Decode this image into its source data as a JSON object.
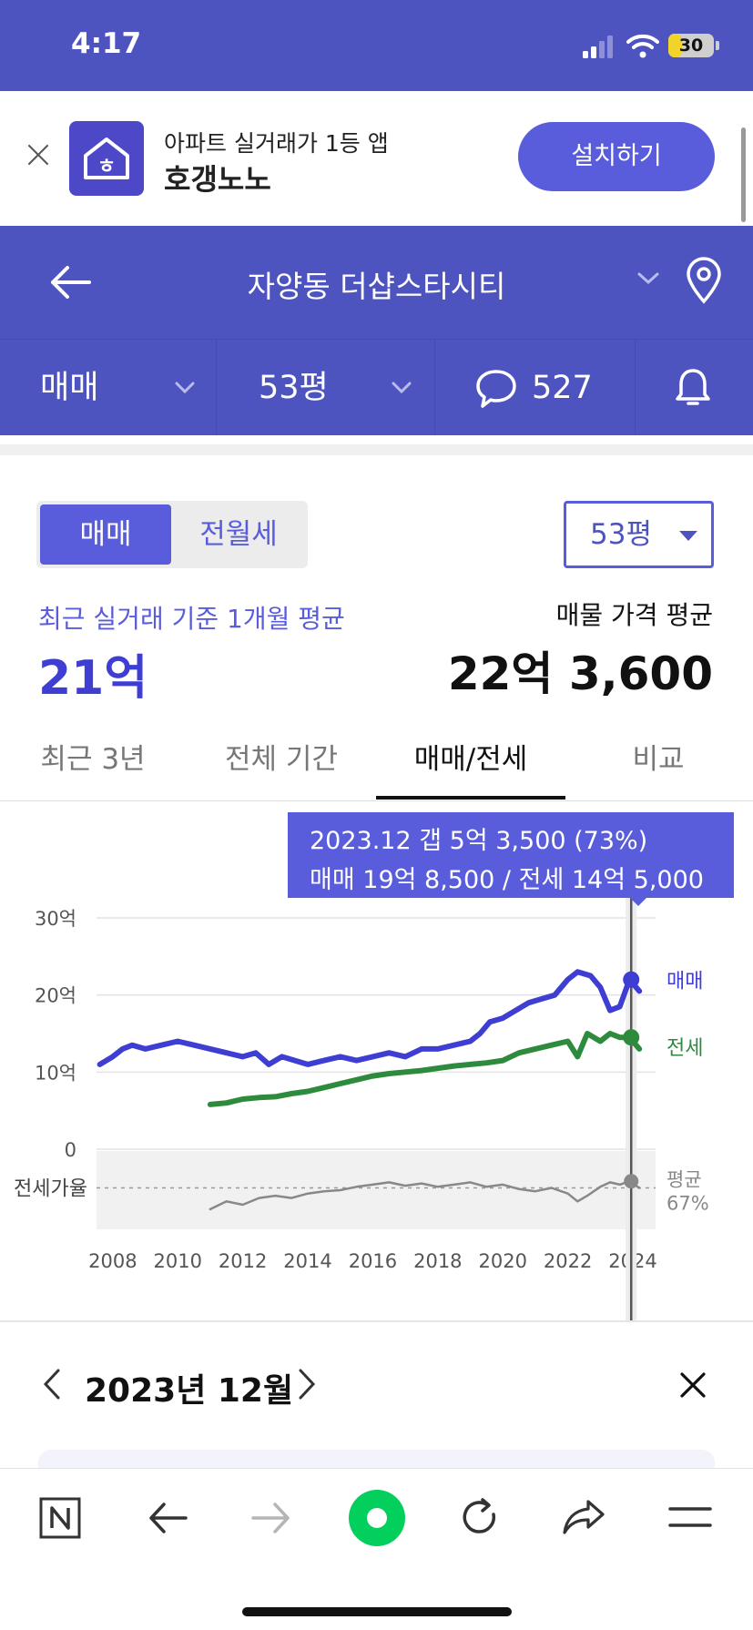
{
  "status_bar": {
    "time": "4:17",
    "battery": "30",
    "battery_level": 0.3
  },
  "banner": {
    "subtitle": "아파트 실거래가 1등 앱",
    "app_name": "호갱노노",
    "install_label": "설치하기",
    "logo_glyph": "ㅎ"
  },
  "header": {
    "title": "자양동 더샵스타시티"
  },
  "subheader": {
    "trade_type": "매매",
    "size": "53평",
    "comment_count": "527"
  },
  "section": {
    "seg_sale": "매매",
    "seg_rent": "전월세",
    "size_select": "53평",
    "recent_label": "최근 실거래 기준 1개월 평균",
    "recent_value": "21억",
    "listing_label": "매물 가격 평균",
    "listing_value": "22억 3,600"
  },
  "tabs": [
    "최근 3년",
    "전체 기간",
    "매매/전세",
    "비교"
  ],
  "active_tab": "매매/전세",
  "tooltip": {
    "line1": "2023.12  갭 5억 3,500 (73%)",
    "line2": "매매 19억 8,500 / 전세 14억 5,000"
  },
  "chart_data": {
    "type": "line",
    "y_ticks": [
      "30억",
      "20억",
      "10억",
      "0"
    ],
    "ylim": [
      0,
      30
    ],
    "x_ticks": [
      "2008",
      "2010",
      "2012",
      "2014",
      "2016",
      "2018",
      "2020",
      "2022",
      "2024"
    ],
    "ratio_label": "전세가율",
    "ratio_avg_label_1": "평균",
    "ratio_avg_label_2": "67%",
    "series": [
      {
        "name": "매매",
        "color": "#3f3ed3",
        "x": [
          2007.6,
          2008.0,
          2008.3,
          2008.6,
          2009.0,
          2009.5,
          2010.0,
          2010.5,
          2011.0,
          2011.5,
          2012.0,
          2012.4,
          2012.8,
          2013.2,
          2013.6,
          2014.0,
          2014.5,
          2015.0,
          2015.5,
          2016.0,
          2016.5,
          2017.0,
          2017.5,
          2018.0,
          2018.5,
          2019.0,
          2019.3,
          2019.6,
          2020.0,
          2020.4,
          2020.8,
          2021.2,
          2021.6,
          2022.0,
          2022.3,
          2022.7,
          2023.0,
          2023.3,
          2023.6,
          2023.9,
          2024.2
        ],
        "values": [
          11,
          12,
          13,
          13.5,
          13,
          13.5,
          14,
          13.5,
          13,
          12.5,
          12,
          12.5,
          11,
          12,
          11.5,
          11,
          11.5,
          12,
          11.5,
          12,
          12.5,
          12,
          13,
          13,
          13.5,
          14,
          15,
          16.5,
          17,
          18,
          19,
          19.5,
          20,
          22,
          23,
          22.5,
          21,
          18,
          18.5,
          22,
          20.5
        ]
      },
      {
        "name": "전세",
        "color": "#2e8b3e",
        "x": [
          2011.0,
          2011.5,
          2012.0,
          2012.5,
          2013.0,
          2013.5,
          2014.0,
          2014.5,
          2015.0,
          2015.5,
          2016.0,
          2016.5,
          2017.0,
          2017.5,
          2018.0,
          2018.5,
          2019.0,
          2019.5,
          2020.0,
          2020.5,
          2021.0,
          2021.5,
          2022.0,
          2022.3,
          2022.6,
          2023.0,
          2023.3,
          2023.6,
          2023.9,
          2024.2
        ],
        "values": [
          5.8,
          6,
          6.5,
          6.7,
          6.8,
          7.2,
          7.5,
          8,
          8.5,
          9,
          9.5,
          9.8,
          10,
          10.2,
          10.5,
          10.8,
          11,
          11.2,
          11.5,
          12.5,
          13,
          13.5,
          14,
          12,
          15,
          14,
          15,
          14.5,
          14.5,
          13
        ]
      },
      {
        "name": "전세가율",
        "color": "#888888",
        "x": [
          2011.0,
          2011.5,
          2012.0,
          2012.5,
          2013.0,
          2013.5,
          2014.0,
          2014.5,
          2015.0,
          2015.5,
          2016.0,
          2016.5,
          2017.0,
          2017.5,
          2018.0,
          2018.5,
          2019.0,
          2019.5,
          2020.0,
          2020.5,
          2021.0,
          2021.5,
          2022.0,
          2022.3,
          2022.6,
          2023.0,
          2023.3,
          2023.6,
          2023.9,
          2024.2
        ],
        "values": [
          48,
          55,
          52,
          58,
          60,
          58,
          62,
          64,
          65,
          68,
          70,
          72,
          69,
          71,
          68,
          70,
          72,
          68,
          70,
          66,
          64,
          67,
          62,
          55,
          60,
          68,
          72,
          70,
          73,
          67
        ]
      }
    ]
  },
  "month_bar": {
    "label": "2023년 12월"
  }
}
